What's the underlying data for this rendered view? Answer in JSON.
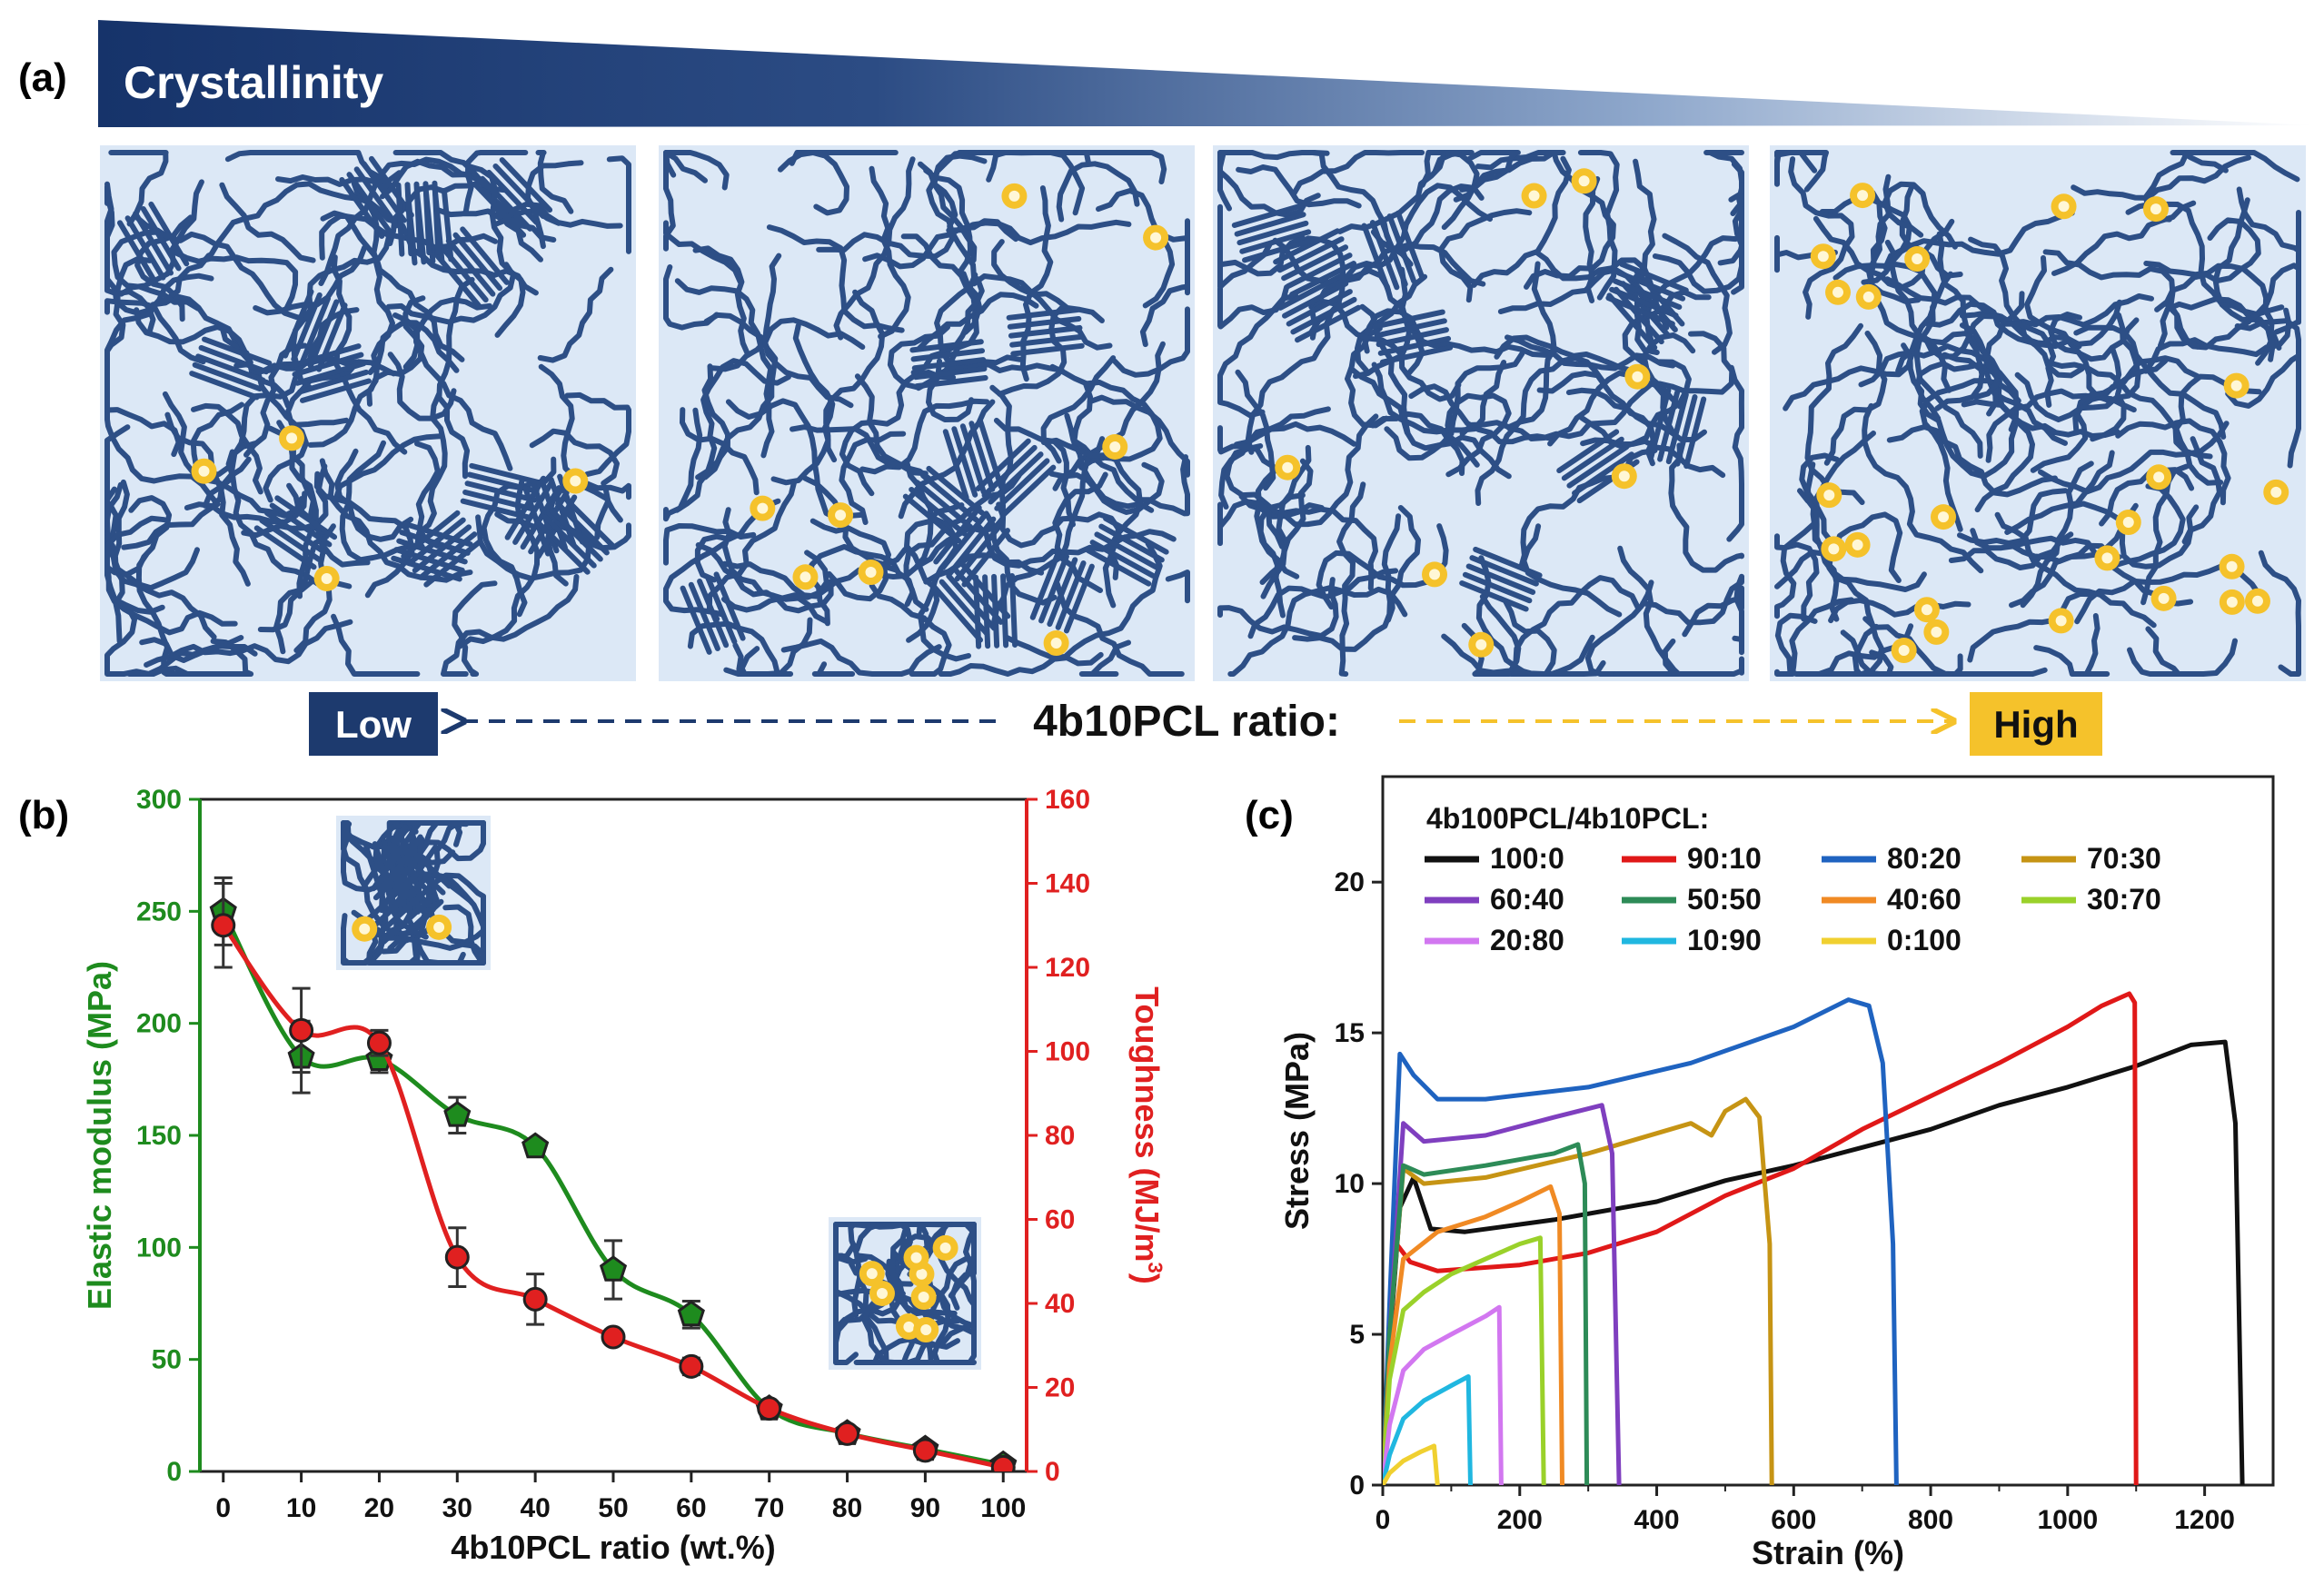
{
  "panel_a": {
    "label": "(a)",
    "banner_text": "Crystallinity",
    "low_label": "Low",
    "high_label": "High",
    "ratio_label": "4b10PCL ratio:",
    "colors": {
      "chain": "#2d4f86",
      "dot": "#f5c22b",
      "box": "#dce8f6",
      "banner": "#1d3a6e"
    },
    "boxes": [
      {
        "name": "box-1",
        "crystallinity": "highest"
      },
      {
        "name": "box-2",
        "crystallinity": "high"
      },
      {
        "name": "box-3",
        "crystallinity": "medium"
      },
      {
        "name": "box-4",
        "crystallinity": "low"
      }
    ]
  },
  "chart_data": [
    {
      "panel": "(b)",
      "type": "line",
      "xlabel": "4b10PCL ratio (wt.%)",
      "ylabel_left": "Elastic modulus (MPa)",
      "ylabel_right": "Toughness (MJ/m",
      "ylabel_right_sup": "3",
      "ylabel_right_end": ")",
      "xlim": [
        -3,
        103
      ],
      "xticks": [
        0,
        10,
        20,
        30,
        40,
        50,
        60,
        70,
        80,
        90,
        100
      ],
      "ylim_left": [
        0,
        300
      ],
      "yticks_left": [
        0,
        50,
        100,
        150,
        200,
        250,
        300
      ],
      "ylim_right": [
        0,
        160
      ],
      "yticks_right": [
        0,
        20,
        40,
        60,
        80,
        100,
        120,
        140,
        160
      ],
      "series": [
        {
          "name": "Elastic modulus",
          "axis": "left",
          "color": "#1e8b1e",
          "marker": "pentagon",
          "x": [
            0,
            10,
            20,
            30,
            40,
            50,
            60,
            70,
            80,
            90,
            100
          ],
          "y": [
            250,
            185,
            184,
            159,
            145,
            90,
            70,
            28,
            17,
            10,
            3
          ],
          "err": [
            15,
            16,
            6,
            8,
            0,
            13,
            6,
            0,
            0,
            0,
            0
          ]
        },
        {
          "name": "Toughness",
          "axis": "right",
          "color": "#e02020",
          "marker": "circle",
          "x": [
            0,
            10,
            20,
            30,
            40,
            50,
            60,
            70,
            80,
            90,
            100
          ],
          "y": [
            130,
            105,
            102,
            51,
            41,
            32,
            25,
            15,
            9,
            5,
            1
          ],
          "err": [
            10,
            10,
            3,
            7,
            6,
            0,
            2,
            0,
            0,
            0,
            0
          ]
        }
      ]
    },
    {
      "panel": "(c)",
      "type": "line",
      "xlabel": "Strain (%)",
      "ylabel": "Stress (MPa)",
      "legend_title": "4b100PCL/4b10PCL:",
      "xlim": [
        0,
        1300
      ],
      "xticks": [
        0,
        200,
        400,
        600,
        800,
        1000,
        1200
      ],
      "ylim": [
        0,
        23.5
      ],
      "yticks": [
        0,
        5,
        10,
        15,
        20
      ],
      "series": [
        {
          "name": "100:0",
          "color": "#111111",
          "x": [
            0,
            8,
            25,
            45,
            70,
            120,
            250,
            400,
            500,
            600,
            700,
            800,
            900,
            1000,
            1100,
            1180,
            1230,
            1245,
            1255
          ],
          "y": [
            0,
            4,
            9.2,
            10.2,
            8.5,
            8.4,
            8.8,
            9.4,
            10.1,
            10.6,
            11.2,
            11.8,
            12.6,
            13.2,
            13.9,
            14.6,
            14.7,
            12,
            0
          ]
        },
        {
          "name": "90:10",
          "color": "#e01818",
          "x": [
            0,
            8,
            20,
            40,
            80,
            200,
            300,
            400,
            500,
            600,
            700,
            800,
            900,
            1000,
            1050,
            1090,
            1098,
            1100
          ],
          "y": [
            0,
            4,
            8,
            7.4,
            7.1,
            7.3,
            7.7,
            8.4,
            9.6,
            10.5,
            11.8,
            12.9,
            14.0,
            15.2,
            15.9,
            16.3,
            16,
            0
          ]
        },
        {
          "name": "80:20",
          "color": "#1f63c0",
          "x": [
            0,
            10,
            25,
            45,
            80,
            150,
            300,
            450,
            600,
            680,
            710,
            730,
            745,
            750
          ],
          "y": [
            0,
            6,
            14.3,
            13.6,
            12.8,
            12.8,
            13.2,
            14.0,
            15.2,
            16.1,
            15.9,
            14,
            8,
            0
          ]
        },
        {
          "name": "70:30",
          "color": "#c69414",
          "x": [
            0,
            10,
            30,
            60,
            150,
            300,
            450,
            480,
            500,
            530,
            550,
            565,
            568
          ],
          "y": [
            0,
            5,
            10.5,
            10,
            10.2,
            11.0,
            12.0,
            11.6,
            12.4,
            12.8,
            12.2,
            8,
            0
          ]
        },
        {
          "name": "60:40",
          "color": "#7f3fbf",
          "x": [
            0,
            10,
            30,
            60,
            150,
            250,
            320,
            335,
            345
          ],
          "y": [
            0,
            5,
            12,
            11.4,
            11.6,
            12.2,
            12.6,
            11,
            0
          ]
        },
        {
          "name": "50:50",
          "color": "#2d8b57",
          "x": [
            0,
            10,
            30,
            60,
            150,
            250,
            285,
            295,
            298
          ],
          "y": [
            0,
            5,
            10.6,
            10.3,
            10.6,
            11.0,
            11.3,
            10,
            0
          ]
        },
        {
          "name": "40:60",
          "color": "#f08a24",
          "x": [
            0,
            10,
            30,
            80,
            150,
            200,
            245,
            258,
            262
          ],
          "y": [
            0,
            4,
            7.5,
            8.4,
            8.9,
            9.4,
            9.9,
            9,
            0
          ]
        },
        {
          "name": "30:70",
          "color": "#9ad12a",
          "x": [
            0,
            10,
            30,
            60,
            100,
            150,
            200,
            230,
            235
          ],
          "y": [
            0,
            3.5,
            5.8,
            6.4,
            7.0,
            7.5,
            8.0,
            8.2,
            0
          ]
        },
        {
          "name": "20:80",
          "color": "#d277f0",
          "x": [
            0,
            10,
            30,
            60,
            100,
            150,
            170,
            173
          ],
          "y": [
            0,
            2,
            3.8,
            4.5,
            5.0,
            5.6,
            5.9,
            0
          ]
        },
        {
          "name": "10:90",
          "color": "#20b7e0",
          "x": [
            0,
            10,
            30,
            60,
            100,
            125,
            128
          ],
          "y": [
            0,
            1,
            2.2,
            2.8,
            3.3,
            3.6,
            0
          ]
        },
        {
          "name": "0:100",
          "color": "#f0d030",
          "x": [
            0,
            10,
            30,
            55,
            75,
            80
          ],
          "y": [
            0,
            0.4,
            0.8,
            1.1,
            1.3,
            0
          ]
        }
      ]
    }
  ]
}
